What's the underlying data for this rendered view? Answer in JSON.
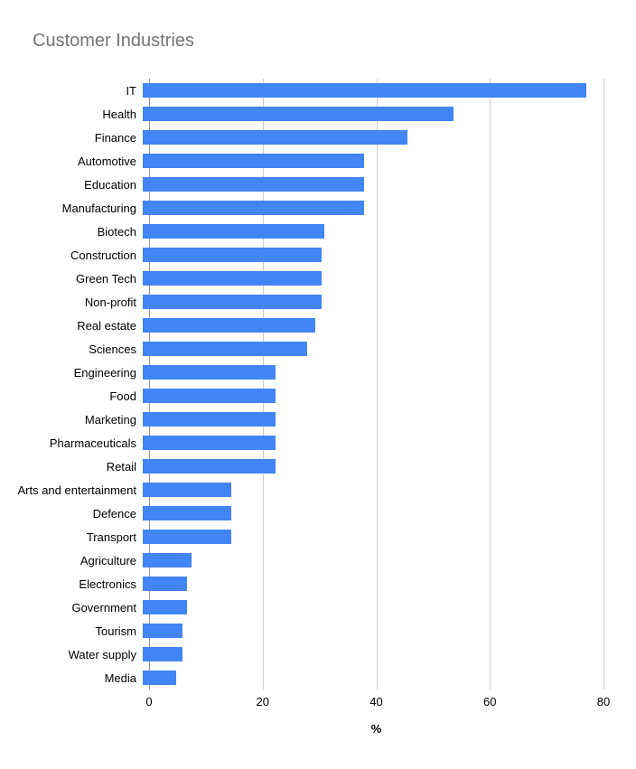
{
  "chart_data": {
    "type": "bar",
    "orientation": "horizontal",
    "title": "Customer Industries",
    "xlabel": "%",
    "xlim": [
      0,
      80
    ],
    "xticks": [
      0,
      20,
      40,
      60,
      80
    ],
    "bar_color": "#4285F4",
    "grid": true,
    "legend_position": "none",
    "categories": [
      "IT",
      "Health",
      "Finance",
      "Automotive",
      "Education",
      "Manufacturing",
      "Biotech",
      "Construction",
      "Green Tech",
      "Non-profit",
      "Real estate",
      "Sciences",
      "Engineering",
      "Food",
      "Marketing",
      "Pharmaceuticals",
      "Retail",
      "Arts and entertainment",
      "Defence",
      "Transport",
      "Agriculture",
      "Electronics",
      "Government",
      "Tourism",
      "Water supply",
      "Media"
    ],
    "values": [
      77,
      54,
      46,
      38.5,
      38.5,
      38.5,
      31.5,
      31,
      31,
      31,
      30,
      28.5,
      23,
      23,
      23,
      23,
      23,
      15.4,
      15.4,
      15.4,
      8.5,
      7.7,
      7.7,
      6.9,
      6.9,
      5.8
    ]
  }
}
